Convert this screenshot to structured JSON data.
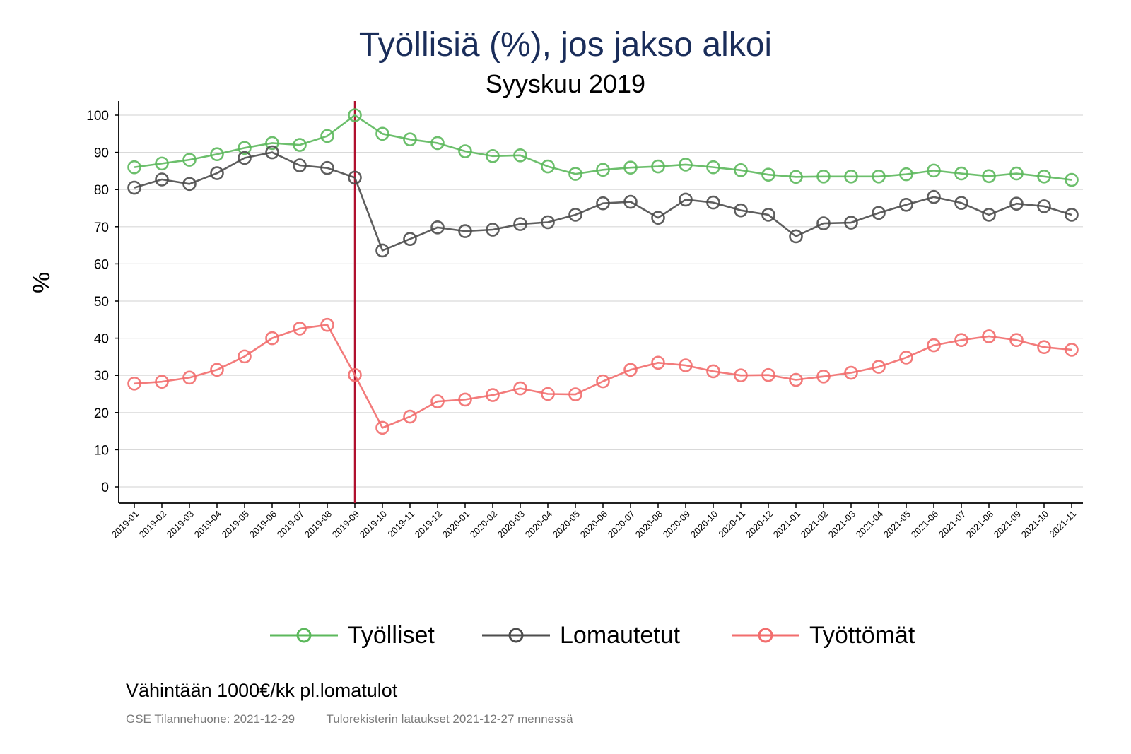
{
  "chart_data": {
    "type": "line",
    "title": "Työllisiä (%), jos jakso alkoi",
    "subtitle": "Syyskuu 2019",
    "ylabel": "%",
    "xlabel": "",
    "ylim": [
      -4,
      104
    ],
    "yticks": [
      0,
      10,
      20,
      30,
      40,
      50,
      60,
      70,
      80,
      90,
      100
    ],
    "grid": true,
    "legend_position": "bottom",
    "reference_line": "2019-09",
    "categories": [
      "2019-01",
      "2019-02",
      "2019-03",
      "2019-04",
      "2019-05",
      "2019-06",
      "2019-07",
      "2019-08",
      "2019-09",
      "2019-10",
      "2019-11",
      "2019-12",
      "2020-01",
      "2020-02",
      "2020-03",
      "2020-04",
      "2020-05",
      "2020-06",
      "2020-07",
      "2020-08",
      "2020-09",
      "2020-10",
      "2020-11",
      "2020-12",
      "2021-01",
      "2021-02",
      "2021-03",
      "2021-04",
      "2021-05",
      "2021-06",
      "2021-07",
      "2021-08",
      "2021-09",
      "2021-10",
      "2021-11"
    ],
    "series": [
      {
        "name": "Työlliset",
        "color": "#5cb85c",
        "values": [
          86,
          87,
          88,
          89.5,
          91.2,
          92.5,
          92,
          94.4,
          100,
          95,
          93.5,
          92.5,
          90.3,
          89,
          89.2,
          86.2,
          84.2,
          85.3,
          85.9,
          86.2,
          86.7,
          86,
          85.2,
          84,
          83.4,
          83.5,
          83.5,
          83.5,
          84.1,
          85.1,
          84.3,
          83.6,
          84.3,
          83.5,
          82.6
        ]
      },
      {
        "name": "Lomautetut",
        "color": "#4d4d4d",
        "values": [
          80.5,
          82.7,
          81.5,
          84.4,
          88.5,
          90,
          86.5,
          85.8,
          83.2,
          63.6,
          66.7,
          69.8,
          68.8,
          69.2,
          70.7,
          71.2,
          73.2,
          76.3,
          76.7,
          72.4,
          77.3,
          76.5,
          74.4,
          73.2,
          67.4,
          70.9,
          71.1,
          73.7,
          75.9,
          78,
          76.4,
          73.2,
          76.2,
          75.5,
          73.2
        ]
      },
      {
        "name": "Työttömät",
        "color": "#f26d6d",
        "values": [
          27.8,
          28.3,
          29.4,
          31.5,
          35.1,
          40,
          42.6,
          43.6,
          30.1,
          15.9,
          18.9,
          23,
          23.5,
          24.7,
          26.5,
          25,
          24.9,
          28.4,
          31.5,
          33.4,
          32.7,
          31.1,
          30,
          30.1,
          28.8,
          29.7,
          30.7,
          32.3,
          34.8,
          38.1,
          39.5,
          40.5,
          39.5,
          37.6,
          36.9
        ]
      }
    ]
  },
  "note": "Vähintään 1000€/kk pl.lomatulot",
  "footer": {
    "left": "GSE Tilannehuone: 2021-12-29",
    "right": "Tulorekisterin lataukset 2021-12-27 mennessä"
  },
  "colors": {
    "title": "#1a2d5a",
    "reference_line": "#b0102e",
    "grid": "#d9d9d9"
  }
}
